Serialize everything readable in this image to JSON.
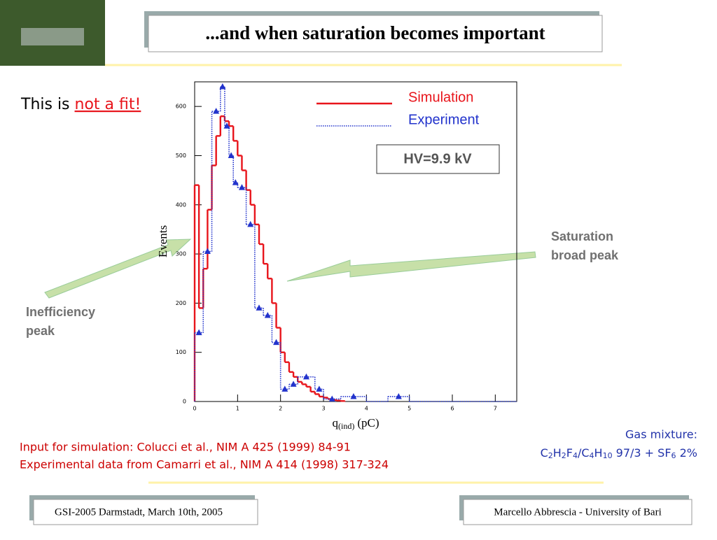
{
  "title": "...and when saturation becomes important",
  "intro": {
    "text": "This is ",
    "emphasis": "not a fit!"
  },
  "chart_data": {
    "type": "histogram",
    "ylabel": "Events",
    "xlabel": "q",
    "xlabel_sub": "(ind)",
    "xlabel_unit": "(pC)",
    "xlim": [
      0,
      7.5
    ],
    "ylim": [
      0,
      650
    ],
    "xticks": [
      0,
      1,
      2,
      3,
      4,
      5,
      6,
      7
    ],
    "yticks": [
      0,
      100,
      200,
      300,
      400,
      500,
      600
    ],
    "series": [
      {
        "name": "Simulation",
        "color": "#e8141b",
        "style": "solid",
        "bins": [
          0,
          0.1,
          0.2,
          0.3,
          0.4,
          0.5,
          0.6,
          0.7,
          0.8,
          0.9,
          1.0,
          1.1,
          1.2,
          1.3,
          1.4,
          1.5,
          1.6,
          1.7,
          1.8,
          1.9,
          2.0,
          2.1,
          2.2,
          2.3,
          2.4,
          2.5,
          2.6,
          2.7,
          2.8,
          2.9,
          3.0,
          3.1,
          3.2,
          3.3,
          3.4,
          3.5
        ],
        "values": [
          440,
          190,
          270,
          390,
          480,
          540,
          580,
          570,
          560,
          530,
          500,
          470,
          430,
          400,
          360,
          320,
          280,
          250,
          200,
          150,
          100,
          80,
          60,
          50,
          40,
          35,
          30,
          20,
          15,
          10,
          8,
          5,
          3,
          2,
          1
        ]
      },
      {
        "name": "Experiment",
        "color": "#2233cc",
        "style": "dotted",
        "bins": [
          0,
          0.2,
          0.4,
          0.6,
          0.7,
          0.8,
          0.9,
          1.0,
          1.2,
          1.4,
          1.6,
          1.8,
          2.0,
          2.2,
          2.4,
          2.8,
          3.0,
          3.4,
          4.0,
          4.5,
          5.0,
          7.5
        ],
        "values": [
          140,
          305,
          590,
          640,
          560,
          500,
          445,
          435,
          360,
          190,
          175,
          120,
          25,
          35,
          50,
          25,
          5,
          10,
          0,
          10,
          0
        ]
      }
    ],
    "legend": "top-right"
  },
  "hv_label": "HV=9.9 kV",
  "annotations": {
    "saturation": [
      "Saturation",
      "broad peak"
    ],
    "inefficiency": [
      "Inefficiency",
      "peak"
    ]
  },
  "references": [
    "Input for simulation: Colucci et al., NIM A 425 (1999) 84-91",
    "Experimental data from Camarri et al., NIM A 414 (1998) 317-324"
  ],
  "gas": {
    "label": "Gas mixture:",
    "formula": [
      "C",
      "2",
      "H",
      "2",
      "F",
      "4",
      "/C",
      "4",
      "H",
      "10",
      " 97/3 + SF",
      "6",
      " 2%"
    ]
  },
  "footer": {
    "left": "GSI-2005 Darmstadt, March 10th, 2005",
    "right": "Marcello Abbrescia - University of Bari"
  }
}
